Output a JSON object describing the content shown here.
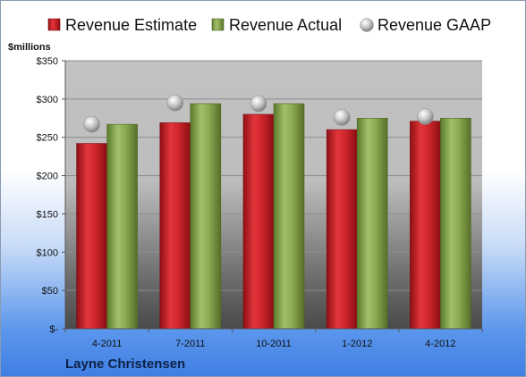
{
  "chart_data": {
    "type": "bar",
    "categories": [
      "4-2011",
      "7-2011",
      "10-2011",
      "1-2012",
      "4-2012"
    ],
    "series": [
      {
        "name": "Revenue Estimate",
        "values": [
          242,
          269,
          280,
          260,
          271
        ],
        "color": "#c8202a"
      },
      {
        "name": "Revenue Actual",
        "values": [
          267,
          294,
          294,
          275,
          275
        ],
        "color": "#7f9f45"
      },
      {
        "name": "Revenue GAAP",
        "values": [
          267,
          295,
          294,
          276,
          277
        ],
        "color": "#b8b8b8",
        "marker": "sphere"
      }
    ],
    "ylabel": "$millions",
    "ylim": [
      0,
      350
    ],
    "yticks": [
      0,
      50,
      100,
      150,
      200,
      250,
      300,
      350
    ],
    "ytick_labels": [
      "$-",
      "$50",
      "$100",
      "$150",
      "$200",
      "$250",
      "$300",
      "$350"
    ],
    "grid": true,
    "legend_position": "top"
  },
  "footer": {
    "company": "Layne Christensen"
  }
}
